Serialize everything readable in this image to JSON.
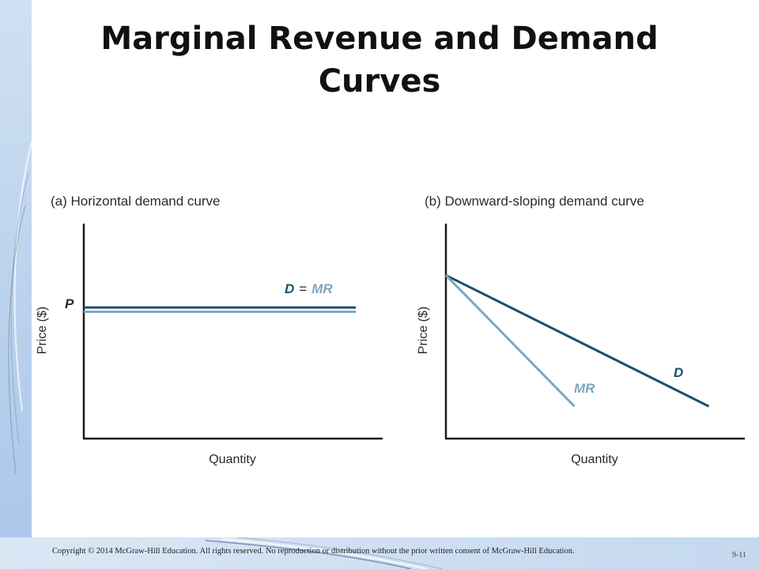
{
  "slide": {
    "title": "Marginal Revenue and Demand Curves",
    "footer": "Copyright © 2014 McGraw-Hill Education. All rights reserved. No reproduction or distribution without the prior written consent of McGraw-Hill Education.",
    "page_number": "9-11"
  },
  "colors": {
    "demand": "#1d4e6a",
    "marginal_revenue": "#7ea7bf",
    "axis": "#1a1a1a"
  },
  "chart_data": [
    {
      "type": "line",
      "title": "(a) Horizontal demand curve",
      "xlabel": "Quantity",
      "ylabel": "Price ($)",
      "xlim": [
        0,
        10
      ],
      "ylim": [
        0,
        10
      ],
      "y_tick_labels": [
        "P"
      ],
      "series": [
        {
          "name": "D",
          "x": [
            0,
            9.1
          ],
          "y": [
            6.1,
            6.1
          ]
        },
        {
          "name": "MR",
          "x": [
            0,
            9.1
          ],
          "y": [
            5.9,
            5.9
          ]
        }
      ],
      "annotations": [
        {
          "text": "D",
          "color": "demand"
        },
        {
          "text": "=",
          "color": "axis"
        },
        {
          "text": "MR",
          "color": "marginal_revenue"
        }
      ]
    },
    {
      "type": "line",
      "title": "(b) Downward-sloping demand curve",
      "xlabel": "Quantity",
      "ylabel": "Price ($)",
      "xlim": [
        0,
        10
      ],
      "ylim": [
        0,
        10
      ],
      "series": [
        {
          "name": "D",
          "x": [
            0,
            8.8
          ],
          "y": [
            7.6,
            1.5
          ]
        },
        {
          "name": "MR",
          "x": [
            0,
            4.3
          ],
          "y": [
            7.6,
            1.5
          ]
        }
      ],
      "annotations": [
        {
          "text": "D",
          "color": "demand"
        },
        {
          "text": "MR",
          "color": "marginal_revenue"
        }
      ]
    }
  ]
}
